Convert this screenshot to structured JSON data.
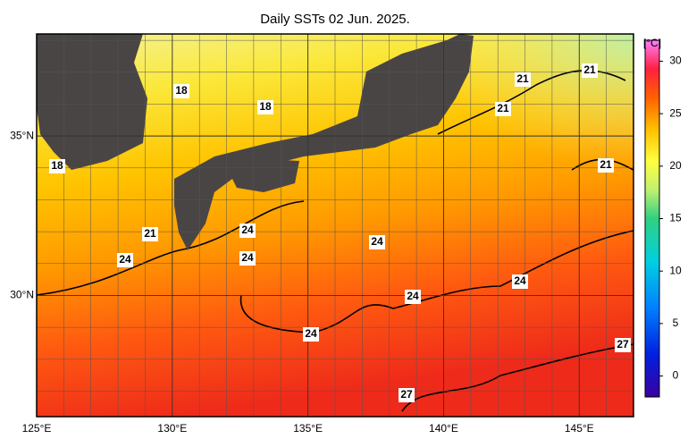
{
  "title": "Daily SSTs 02 Jun. 2025.",
  "map": {
    "lonlim": [
      125,
      147
    ],
    "latlim": [
      26.2,
      38.2
    ],
    "lon_ticks": [
      {
        "value": 125,
        "label": "125°E"
      },
      {
        "value": 130,
        "label": "130°E"
      },
      {
        "value": 135,
        "label": "135°E"
      },
      {
        "value": 140,
        "label": "140°E"
      },
      {
        "value": 145,
        "label": "145°E"
      }
    ],
    "lat_ticks": [
      {
        "value": 35,
        "label": "35°N"
      },
      {
        "value": 30,
        "label": "30°N"
      }
    ],
    "contour_labels": [
      18,
      18,
      18,
      21,
      21,
      21,
      21,
      21,
      24,
      24,
      24,
      24,
      24,
      24,
      24,
      27,
      27
    ]
  },
  "colorbar": {
    "unit": "[°C]",
    "lim": [
      -2,
      32
    ],
    "ticks": [
      30,
      25,
      20,
      15,
      10,
      5,
      0
    ]
  }
}
